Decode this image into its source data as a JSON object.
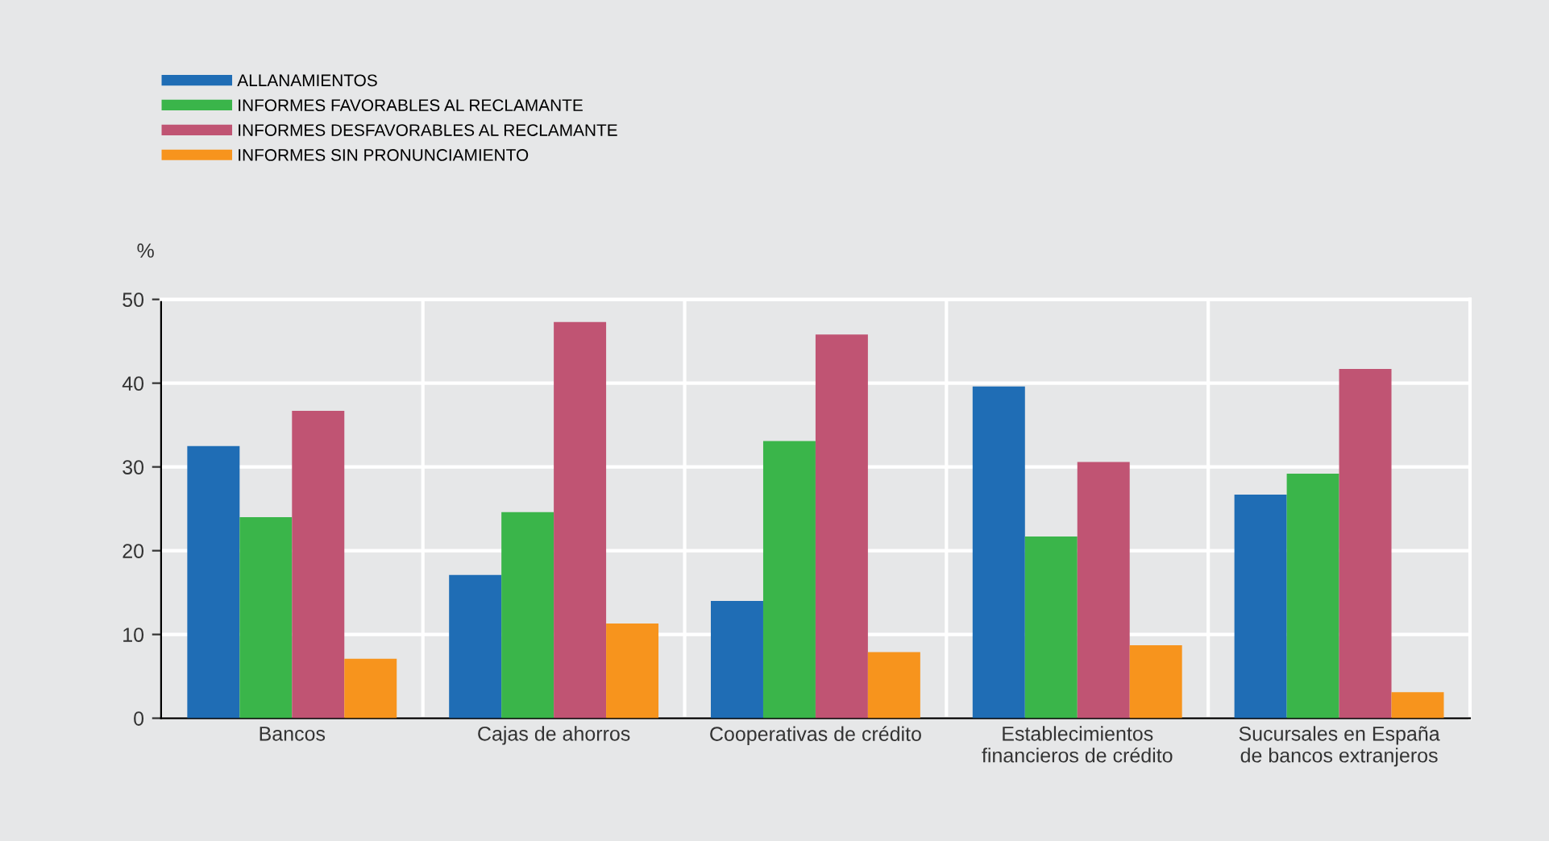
{
  "chart_data": {
    "type": "bar",
    "ylabel": "%",
    "categories": [
      "Bancos",
      "Cajas de ahorros",
      "Cooperativas de crédito",
      "Establecimientos\nfinancieros de crédito",
      "Sucursales en España\nde bancos extranjeros"
    ],
    "series": [
      {
        "name": "ALLANAMIENTOS",
        "color": "#1f6db5",
        "values": [
          32.5,
          17.1,
          14.0,
          39.6,
          26.7
        ]
      },
      {
        "name": "INFORMES FAVORABLES AL RECLAMANTE",
        "color": "#3ab54a",
        "values": [
          24.0,
          24.6,
          33.1,
          21.7,
          29.2
        ]
      },
      {
        "name": "INFORMES DESFAVORABLES AL RECLAMANTE",
        "color": "#c05473",
        "values": [
          36.7,
          47.3,
          45.8,
          30.6,
          41.7
        ]
      },
      {
        "name": "INFORMES SIN PRONUNCIAMIENTO",
        "color": "#f7941d",
        "values": [
          7.1,
          11.3,
          7.9,
          8.7,
          3.1
        ]
      }
    ],
    "ylim": [
      0,
      50
    ],
    "yticks": [
      0,
      10,
      20,
      30,
      40,
      50
    ],
    "grid": true,
    "legend": "top left"
  }
}
